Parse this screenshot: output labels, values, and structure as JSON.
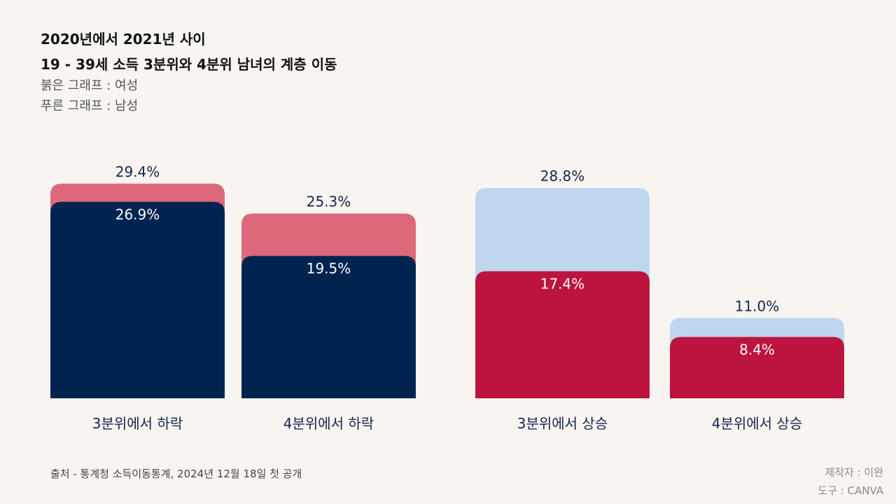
{
  "header": {
    "title_line1": "2020년에서 2021년 사이",
    "title_line2": "19 - 39세 소득 3분위와 4분위 남녀의 계층 이동",
    "legend_line1": "붉은 그래프 : 여성",
    "legend_line2": "푸른 그래프 : 남성"
  },
  "footer": {
    "source": "출처 - 통계청 소득이동통계, 2024년 12월 18일 첫 공개",
    "credit_maker": "제작자 : 이완",
    "credit_tool": "도구 : CANVA"
  },
  "colors": {
    "background": "#f8f5f0",
    "female_light": "#dc6879",
    "female_dark": "#bc143f",
    "male_light": "#bed6ee",
    "male_dark": "#012350",
    "label_dark_text": "#14254f",
    "label_light_text": "#ffffff"
  },
  "chart_data": {
    "type": "bar",
    "title": "19 - 39세 소득 3분위와 4분위 남녀의 계층 이동",
    "categories": [
      "3분위에서 하락",
      "4분위에서 하락",
      "3분위에서 상승",
      "4분위에서 상승"
    ],
    "series": [
      {
        "name": "여성",
        "values": [
          29.4,
          25.3,
          17.4,
          8.4
        ]
      },
      {
        "name": "남성",
        "values": [
          26.9,
          19.5,
          28.8,
          11.0
        ]
      }
    ],
    "value_labels": [
      {
        "back": "29.4%",
        "front": "26.9%"
      },
      {
        "back": "25.3%",
        "front": "19.5%"
      },
      {
        "back": "28.8%",
        "front": "17.4%"
      },
      {
        "back": "11.0%",
        "front": "8.4%"
      }
    ],
    "bar_layers": [
      {
        "back": "female",
        "front": "male"
      },
      {
        "back": "female",
        "front": "male"
      },
      {
        "back": "male",
        "front": "female"
      },
      {
        "back": "male",
        "front": "female"
      }
    ],
    "ylim": [
      0,
      30
    ],
    "grid": false,
    "xlabel": "",
    "ylabel": ""
  }
}
